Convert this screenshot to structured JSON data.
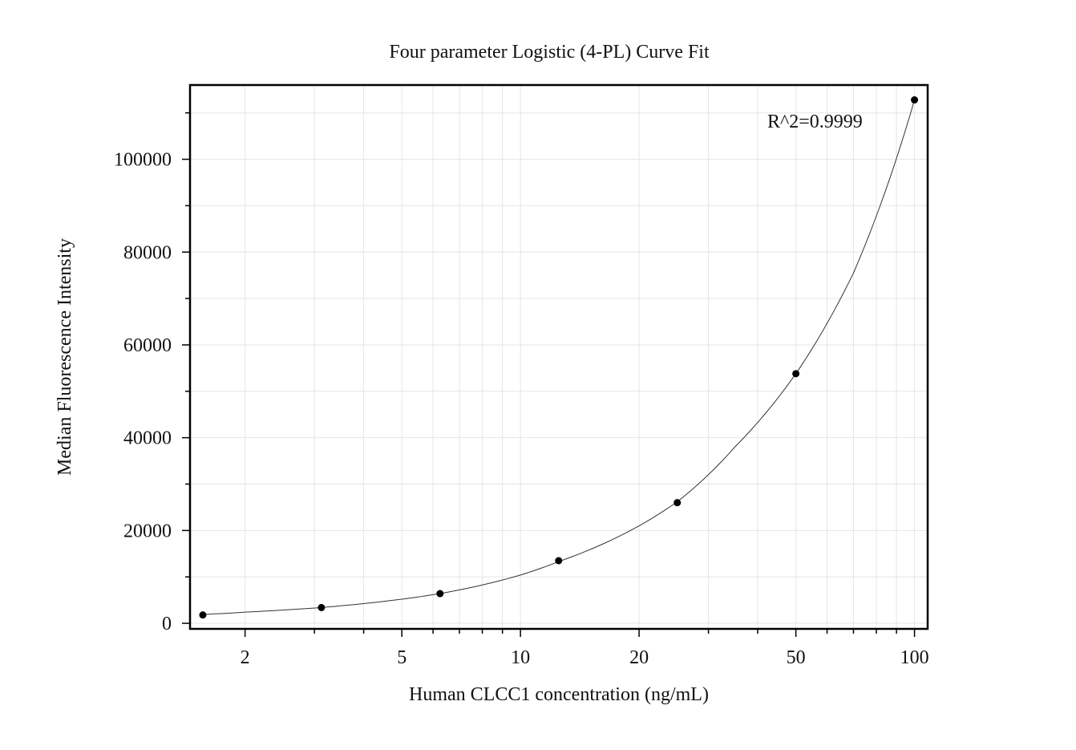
{
  "chart_data": {
    "type": "scatter",
    "title": "Four parameter Logistic (4-PL) Curve Fit",
    "xlabel": "Human CLCC1 concentration (ng/mL)",
    "ylabel": "Median Fluorescence Intensity",
    "x_scale": "log",
    "xlim": [
      1.45,
      108
    ],
    "ylim": [
      -1200,
      116000
    ],
    "x_ticks": [
      2,
      5,
      10,
      20,
      50,
      100
    ],
    "x_tick_labels": [
      "2",
      "5",
      "10",
      "20",
      "50",
      "100"
    ],
    "y_ticks": [
      0,
      20000,
      40000,
      60000,
      80000,
      100000
    ],
    "y_tick_labels": [
      "0",
      "20000",
      "40000",
      "60000",
      "80000",
      "100000"
    ],
    "grid": true,
    "annotation": "R^2=0.9999",
    "series": [
      {
        "x": [
          1.5625,
          3.125,
          6.25,
          12.5,
          25,
          50,
          100
        ],
        "y": [
          1800,
          3400,
          6400,
          13500,
          26000,
          53800,
          112800
        ]
      }
    ],
    "fit": {
      "x": [
        1.5625,
        2,
        3.125,
        5,
        6.25,
        10,
        12.5,
        20,
        25,
        35,
        50,
        70,
        100
      ],
      "y": [
        1900,
        2400,
        3400,
        5200,
        6400,
        10400,
        13300,
        21000,
        26200,
        38000,
        53800,
        75500,
        112800
      ]
    },
    "colors": {
      "points": "#000000",
      "curve": "#333333",
      "grid": "#e6e6e6",
      "frame": "#000000"
    }
  }
}
